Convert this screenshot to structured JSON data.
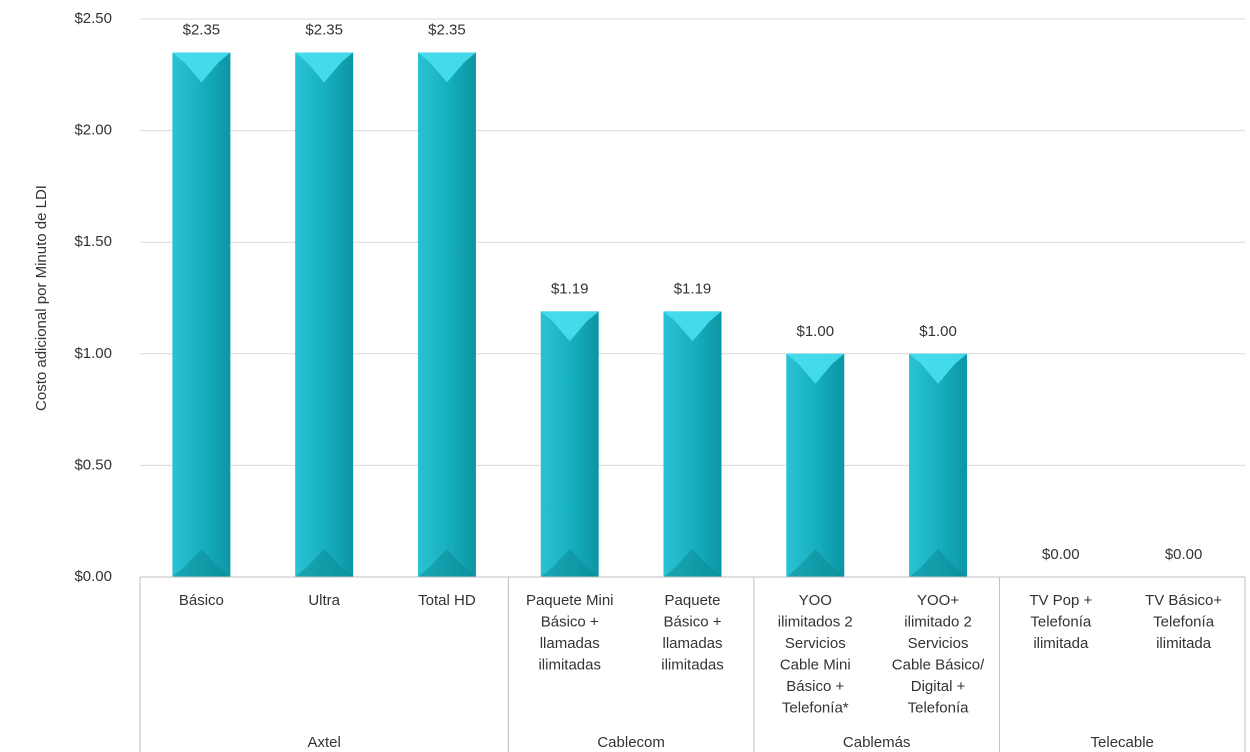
{
  "chart_data": {
    "type": "bar",
    "y_label": "Costo adicional por Minuto de LDI",
    "categories": [
      [
        "Básico"
      ],
      [
        "Ultra"
      ],
      [
        "Total HD"
      ],
      [
        "Paquete Mini",
        "Básico +",
        "llamadas",
        "ilimitadas"
      ],
      [
        "Paquete",
        "Básico +",
        "llamadas",
        "ilimitadas"
      ],
      [
        "YOO",
        "ilimitados 2",
        "Servicios",
        "Cable Mini",
        "Básico +",
        "Telefonía*"
      ],
      [
        "YOO+",
        "ilimitado 2",
        "Servicios",
        "Cable Básico/",
        "Digital +",
        "Telefonía"
      ],
      [
        "TV Pop +",
        "Telefonía",
        "ilimitada"
      ],
      [
        "TV Básico+",
        "Telefonía",
        "ilimitada"
      ]
    ],
    "groups": [
      {
        "name": "Axtel",
        "count": 3
      },
      {
        "name": "Cablecom",
        "count": 2
      },
      {
        "name": "Cablemás",
        "count": 2
      },
      {
        "name": "Telecable",
        "count": 2
      }
    ],
    "values": [
      2.35,
      2.35,
      2.35,
      1.19,
      1.19,
      1.0,
      1.0,
      0,
      0
    ],
    "value_labels": [
      "$2.35",
      "$2.35",
      "$2.35",
      "$1.19",
      "$1.19",
      "$1.00",
      "$1.00",
      "$0.00",
      "$0.00"
    ],
    "color": "#17b3c3",
    "ylim": [
      0,
      2.5
    ],
    "yticks": [
      {
        "value": 0,
        "label": "$0.00"
      },
      {
        "value": 0.5,
        "label": "$0.50"
      },
      {
        "value": 1.0,
        "label": "$1.00"
      },
      {
        "value": 1.5,
        "label": "$1.50"
      },
      {
        "value": 2.0,
        "label": "$2.00"
      },
      {
        "value": 2.5,
        "label": "$2.50"
      }
    ],
    "grid": true
  }
}
